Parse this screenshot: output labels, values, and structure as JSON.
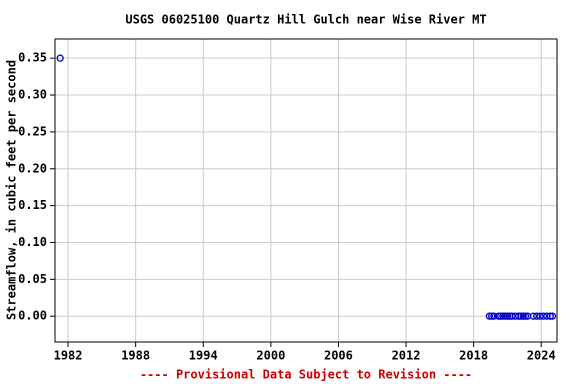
{
  "chart_data": {
    "type": "scatter",
    "title": "USGS 06025100 Quartz Hill Gulch near Wise River MT",
    "y_label": "Streamflow, in cubic feet per second",
    "annotation": "---- Provisional Data Subject to Revision ----",
    "color": "#0000cc",
    "grid": true,
    "x": [
      1981.3,
      2019.4,
      2019.6,
      2019.8,
      2020.2,
      2020.4,
      2020.6,
      2020.8,
      2021.0,
      2021.2,
      2021.4,
      2021.7,
      2022.0,
      2022.2,
      2022.4,
      2022.6,
      2022.8,
      2023.3,
      2023.6,
      2023.9,
      2024.2,
      2024.5,
      2024.8,
      2025.0
    ],
    "values": [
      0.35,
      0,
      0,
      0,
      0,
      0,
      0,
      0,
      0,
      0,
      0,
      0,
      0,
      0,
      0,
      0,
      0,
      0,
      0,
      0,
      0,
      0,
      0,
      0
    ],
    "xlim": [
      1980.84,
      2025.4
    ],
    "xticks": [
      1982,
      1988,
      1994,
      2000,
      2006,
      2012,
      2018,
      2024
    ],
    "ylim": [
      -0.035,
      0.376
    ],
    "yticks": [
      {
        "value": 0,
        "label": "0.00"
      },
      0.05,
      {
        "value": 0.1,
        "label": "0.10"
      },
      0.15,
      {
        "value": 0.2,
        "label": "0.20"
      },
      0.25,
      {
        "value": 0.3,
        "label": "0.30"
      },
      0.35
    ]
  }
}
